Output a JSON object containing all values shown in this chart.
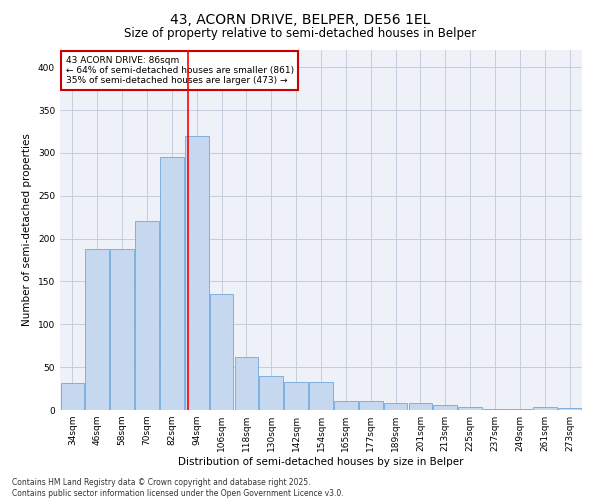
{
  "title": "43, ACORN DRIVE, BELPER, DE56 1EL",
  "subtitle": "Size of property relative to semi-detached houses in Belper",
  "xlabel": "Distribution of semi-detached houses by size in Belper",
  "ylabel": "Number of semi-detached properties",
  "categories": [
    "34sqm",
    "46sqm",
    "58sqm",
    "70sqm",
    "82sqm",
    "94sqm",
    "106sqm",
    "118sqm",
    "130sqm",
    "142sqm",
    "154sqm",
    "165sqm",
    "177sqm",
    "189sqm",
    "201sqm",
    "213sqm",
    "225sqm",
    "237sqm",
    "249sqm",
    "261sqm",
    "273sqm"
  ],
  "values": [
    32,
    188,
    188,
    220,
    295,
    320,
    135,
    62,
    40,
    33,
    33,
    10,
    10,
    8,
    8,
    6,
    3,
    1,
    1,
    3,
    2
  ],
  "bar_color": "#c5d8f0",
  "bar_edge_color": "#5b9bd5",
  "grid_color": "#c0c8d8",
  "background_color": "#eef2f8",
  "annotation_text": "43 ACORN DRIVE: 86sqm\n← 64% of semi-detached houses are smaller (861)\n35% of semi-detached houses are larger (473) →",
  "annotation_box_color": "#ffffff",
  "annotation_box_edge": "#cc0000",
  "red_line_x": 4.65,
  "ylim": [
    0,
    420
  ],
  "yticks": [
    0,
    50,
    100,
    150,
    200,
    250,
    300,
    350,
    400
  ],
  "footer": "Contains HM Land Registry data © Crown copyright and database right 2025.\nContains public sector information licensed under the Open Government Licence v3.0.",
  "title_fontsize": 10,
  "subtitle_fontsize": 8.5,
  "tick_fontsize": 6.5,
  "ylabel_fontsize": 7.5,
  "xlabel_fontsize": 7.5,
  "annotation_fontsize": 6.5,
  "footer_fontsize": 5.5
}
